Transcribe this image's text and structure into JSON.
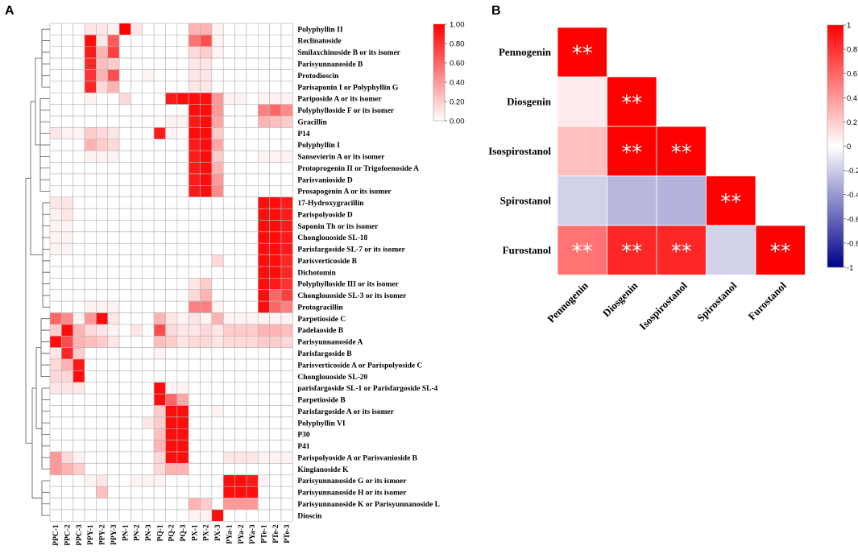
{
  "panels": {
    "a": "A",
    "b": "B"
  },
  "chart_data": [
    {
      "type": "heatmap",
      "title": "",
      "columns": [
        "PPC-1",
        "PPC-2",
        "PPC-3",
        "PPY-1",
        "PPY-2",
        "PPY-3",
        "PN-1",
        "PN-2",
        "PN-3",
        "PQ-1",
        "PQ-2",
        "PQ-3",
        "PX-1",
        "PX-2",
        "PX-3",
        "PYa-1",
        "PYa-2",
        "PYa-3",
        "PTe-1",
        "PTe-2",
        "PTe-3"
      ],
      "rows": [
        "Polyphyllin II",
        "Reclinatoside",
        "Smilaxchinoside B or its isomer",
        "Parisyunnanoside B",
        "Protodioscin",
        "Parisaponin I or Polyphyllin G",
        "Pariposide A or its isomer",
        "Polyphylloside F or its isomer",
        "Gracillin",
        "P14",
        "Polyphyllin I",
        "Sansevierin A or its isomer",
        "Protoprogenin II or Trigofoenoside A",
        "Parisvanioside D",
        "Prosapogenin A or its isomer",
        "17-Hydroxygracillin",
        "Parispolyoside D",
        "Saponin Th or its isomer",
        "Chonglouoside SL-18",
        "Parisfargoside SL-7 or its isomer",
        "Parisverticoside B",
        "Dichotomin",
        "Polyphylloside III or its isomer",
        "Chonglouoside SL-3 or its isomer",
        "Protogracillin",
        "Parpetioside C",
        "Padelaoside B",
        "Parisyunnanoside A",
        "Parisfargoside B",
        "Parisverticoside A or Parispolyoside C",
        "Chonglouoside SL-20",
        "parisfargoside SL-1 or Parisfargoside SL-4",
        "Parpetioside B",
        "Parisfargoside A or its isomer",
        "Polyphyllin VI",
        "P30",
        "P41",
        "Parispolyoside A or Parisvanioside B",
        "Kingianoside K",
        "Parisyunnanoside G or its ismoer",
        "Parisyunnanoside H or its isomer",
        "Parisyunnanoside K or Parisyunnanoside L",
        "Dioscin"
      ],
      "values": [
        [
          0,
          0,
          0,
          0.1,
          0.1,
          0.05,
          1,
          0.1,
          0,
          0,
          0,
          0,
          0.3,
          0.3,
          0.05,
          0,
          0,
          0,
          0,
          0,
          0
        ],
        [
          0,
          0,
          0,
          0.95,
          0.1,
          0.65,
          0,
          0,
          0,
          0,
          0,
          0,
          0.55,
          0.7,
          0.05,
          0,
          0,
          0,
          0,
          0,
          0
        ],
        [
          0,
          0,
          0,
          0.9,
          0.3,
          0.75,
          0,
          0,
          0,
          0,
          0,
          0,
          0.15,
          0.2,
          0.05,
          0,
          0,
          0,
          0,
          0,
          0
        ],
        [
          0,
          0,
          0,
          0.85,
          0.25,
          0.2,
          0,
          0,
          0,
          0,
          0,
          0,
          0.1,
          0.1,
          0,
          0,
          0,
          0,
          0,
          0,
          0
        ],
        [
          0,
          0,
          0,
          0.8,
          0.3,
          0.7,
          0,
          0,
          0.05,
          0,
          0,
          0,
          0.1,
          0.1,
          0,
          0,
          0,
          0,
          0,
          0,
          0
        ],
        [
          0,
          0,
          0,
          0.85,
          0.15,
          0.3,
          0,
          0,
          0,
          0,
          0,
          0,
          0.1,
          0.1,
          0,
          0,
          0,
          0,
          0,
          0,
          0
        ],
        [
          0,
          0,
          0,
          0.05,
          0,
          0,
          0.15,
          0,
          0,
          0,
          0.9,
          0.95,
          0.95,
          0.95,
          0.4,
          0.05,
          0.05,
          0,
          0.05,
          0.05,
          0.05
        ],
        [
          0,
          0,
          0,
          0,
          0,
          0,
          0,
          0,
          0,
          0,
          0,
          0,
          0.95,
          0.95,
          0.4,
          0,
          0,
          0,
          0.5,
          0.6,
          0.45
        ],
        [
          0,
          0,
          0,
          0,
          0,
          0,
          0,
          0,
          0,
          0,
          0.05,
          0.05,
          0.9,
          0.95,
          0.35,
          0,
          0,
          0,
          0.3,
          0.25,
          0.2
        ],
        [
          0.1,
          0.05,
          0.05,
          0.2,
          0.15,
          0.1,
          0,
          0,
          0,
          0.9,
          0.05,
          0,
          0.95,
          0.95,
          0.2,
          0,
          0,
          0,
          0,
          0,
          0
        ],
        [
          0,
          0,
          0,
          0.3,
          0.2,
          0.15,
          0,
          0,
          0,
          0,
          0,
          0,
          0.9,
          0.95,
          0.35,
          0,
          0,
          0,
          0,
          0,
          0
        ],
        [
          0,
          0,
          0,
          0.05,
          0.05,
          0.05,
          0,
          0,
          0,
          0,
          0,
          0,
          0.9,
          0.95,
          0.2,
          0,
          0,
          0,
          0.05,
          0.05,
          0.05
        ],
        [
          0,
          0,
          0,
          0,
          0,
          0,
          0,
          0,
          0,
          0,
          0,
          0,
          0.9,
          0.95,
          0.3,
          0,
          0,
          0,
          0,
          0,
          0
        ],
        [
          0,
          0,
          0,
          0,
          0,
          0,
          0,
          0,
          0,
          0,
          0,
          0,
          0.9,
          0.95,
          0.4,
          0,
          0,
          0,
          0,
          0,
          0
        ],
        [
          0,
          0,
          0,
          0,
          0,
          0,
          0,
          0,
          0,
          0,
          0,
          0,
          0.9,
          0.95,
          0.45,
          0,
          0,
          0,
          0,
          0,
          0
        ],
        [
          0.1,
          0.1,
          0,
          0,
          0,
          0,
          0,
          0,
          0,
          0,
          0,
          0,
          0,
          0,
          0,
          0,
          0,
          0,
          0.95,
          0.95,
          0.9
        ],
        [
          0.05,
          0.1,
          0,
          0,
          0,
          0,
          0,
          0,
          0,
          0,
          0,
          0,
          0,
          0,
          0,
          0,
          0,
          0,
          0.95,
          0.95,
          0.9
        ],
        [
          0.05,
          0.05,
          0,
          0,
          0,
          0,
          0,
          0,
          0,
          0,
          0,
          0,
          0,
          0,
          0,
          0,
          0,
          0,
          0.95,
          0.95,
          0.9
        ],
        [
          0.05,
          0.05,
          0,
          0,
          0,
          0,
          0,
          0,
          0,
          0,
          0,
          0,
          0,
          0,
          0,
          0,
          0,
          0,
          0.95,
          0.95,
          0.9
        ],
        [
          0.05,
          0.05,
          0,
          0,
          0,
          0,
          0,
          0,
          0,
          0,
          0,
          0,
          0,
          0,
          0,
          0,
          0,
          0,
          0.95,
          0.95,
          0.9
        ],
        [
          0,
          0,
          0,
          0,
          0,
          0,
          0,
          0,
          0,
          0,
          0,
          0,
          0,
          0,
          0.15,
          0,
          0,
          0,
          0.95,
          0.95,
          0.85
        ],
        [
          0,
          0,
          0,
          0,
          0,
          0,
          0,
          0,
          0,
          0,
          0,
          0,
          0,
          0,
          0,
          0,
          0,
          0,
          0.95,
          0.95,
          0.85
        ],
        [
          0,
          0,
          0,
          0,
          0,
          0,
          0,
          0,
          0,
          0,
          0,
          0,
          0.1,
          0.2,
          0,
          0,
          0,
          0,
          0.95,
          0.9,
          0.8
        ],
        [
          0,
          0,
          0,
          0,
          0,
          0,
          0,
          0,
          0,
          0,
          0,
          0,
          0.15,
          0.3,
          0,
          0,
          0,
          0,
          0.95,
          0.6,
          0.75
        ],
        [
          0,
          0,
          0,
          0.05,
          0.05,
          0.05,
          0,
          0,
          0,
          0,
          0,
          0,
          0.5,
          0.5,
          0.05,
          0,
          0,
          0,
          0.95,
          0.6,
          0.5
        ],
        [
          0.6,
          0.45,
          0.05,
          0.4,
          0.95,
          0.1,
          0,
          0,
          0,
          0.3,
          0.1,
          0.05,
          0.1,
          0.05,
          0.3,
          0.05,
          0.05,
          0.05,
          0.05,
          0.05,
          0.05
        ],
        [
          0.2,
          0.95,
          0.3,
          0.15,
          0.1,
          0.05,
          0,
          0.1,
          0,
          0.7,
          0.15,
          0.1,
          0.1,
          0.15,
          0.1,
          0.2,
          0.2,
          0.2,
          0.3,
          0.3,
          0.25
        ],
        [
          0.95,
          0.7,
          0.3,
          0.25,
          0.2,
          0.1,
          0,
          0,
          0,
          0.25,
          0.2,
          0.1,
          0.15,
          0.15,
          0.1,
          0.15,
          0.15,
          0.15,
          0.2,
          0.2,
          0.15
        ],
        [
          0.1,
          0.85,
          0.2,
          0,
          0,
          0,
          0,
          0,
          0,
          0.05,
          0,
          0,
          0,
          0,
          0,
          0,
          0,
          0,
          0,
          0,
          0
        ],
        [
          0.15,
          0.3,
          0.9,
          0,
          0,
          0,
          0,
          0,
          0,
          0,
          0,
          0,
          0,
          0,
          0,
          0,
          0,
          0,
          0,
          0,
          0
        ],
        [
          0.15,
          0.15,
          0.95,
          0,
          0,
          0,
          0,
          0,
          0,
          0,
          0,
          0,
          0,
          0,
          0,
          0,
          0,
          0,
          0,
          0,
          0
        ],
        [
          0.1,
          0.1,
          0.1,
          0,
          0,
          0,
          0,
          0,
          0,
          0.95,
          0.05,
          0.05,
          0,
          0,
          0,
          0,
          0,
          0,
          0,
          0,
          0
        ],
        [
          0,
          0,
          0,
          0,
          0,
          0,
          0,
          0,
          0,
          0.95,
          0.6,
          0.35,
          0,
          0,
          0,
          0,
          0,
          0,
          0,
          0,
          0
        ],
        [
          0,
          0,
          0,
          0,
          0,
          0,
          0,
          0,
          0,
          0.2,
          0.95,
          0.95,
          0,
          0,
          0.05,
          0,
          0,
          0,
          0,
          0,
          0
        ],
        [
          0,
          0,
          0,
          0,
          0,
          0,
          0,
          0,
          0.1,
          0.2,
          0.95,
          0.95,
          0,
          0,
          0,
          0,
          0,
          0,
          0,
          0,
          0
        ],
        [
          0,
          0,
          0,
          0,
          0,
          0,
          0,
          0,
          0,
          0.25,
          0.95,
          0.95,
          0,
          0,
          0,
          0,
          0,
          0,
          0,
          0,
          0
        ],
        [
          0,
          0,
          0,
          0,
          0,
          0,
          0,
          0,
          0,
          0.3,
          0.95,
          0.95,
          0,
          0,
          0,
          0,
          0,
          0,
          0,
          0,
          0
        ],
        [
          0.4,
          0.15,
          0.05,
          0,
          0,
          0,
          0,
          0,
          0,
          0.15,
          0.95,
          0.95,
          0,
          0,
          0,
          0.1,
          0.1,
          0.1,
          0.05,
          0.05,
          0.05
        ],
        [
          0.4,
          0.3,
          0.2,
          0,
          0,
          0,
          0,
          0,
          0,
          0.15,
          0.3,
          0.3,
          0,
          0,
          0,
          0,
          0,
          0,
          0,
          0,
          0
        ],
        [
          0,
          0,
          0,
          0.05,
          0.1,
          0,
          0,
          0.05,
          0.05,
          0.05,
          0,
          0,
          0,
          0,
          0,
          0.95,
          0.95,
          0.9,
          0.05,
          0,
          0
        ],
        [
          0,
          0,
          0,
          0,
          0.25,
          0,
          0,
          0,
          0,
          0,
          0,
          0,
          0,
          0,
          0,
          0.95,
          0.95,
          0.95,
          0,
          0,
          0
        ],
        [
          0,
          0,
          0,
          0,
          0,
          0,
          0,
          0,
          0,
          0,
          0,
          0,
          0.3,
          0.2,
          0,
          0.4,
          0.4,
          0.4,
          0,
          0,
          0
        ],
        [
          0,
          0,
          0,
          0,
          0,
          0,
          0,
          0,
          0,
          0,
          0,
          0,
          0.05,
          0.05,
          0.95,
          0,
          0,
          0,
          0,
          0,
          0
        ]
      ],
      "colorbar": {
        "min": 0,
        "max": 1,
        "ticks": [
          "1.00",
          "0.80",
          "0.60",
          "0.40",
          "0.20",
          "0.00"
        ]
      },
      "colors": {
        "low": "#ffffff",
        "high": "#ff0000",
        "grid": "#b4b4b4"
      }
    },
    {
      "type": "heatmap",
      "title": "",
      "variables": [
        "Pennogenin",
        "Diosgenin",
        "Isospirostanol",
        "Spirostanol",
        "Furostanol"
      ],
      "matrix": [
        [
          1,
          null,
          null,
          null,
          null
        ],
        [
          0.08,
          1,
          null,
          null,
          null
        ],
        [
          0.25,
          1,
          1,
          null,
          null
        ],
        [
          -0.18,
          -0.28,
          -0.3,
          1,
          null
        ],
        [
          0.55,
          0.85,
          0.85,
          -0.18,
          1
        ]
      ],
      "significance": [
        [
          "**",
          "",
          "",
          "",
          ""
        ],
        [
          "",
          "**",
          "",
          "",
          ""
        ],
        [
          "",
          "**",
          "**",
          "",
          ""
        ],
        [
          "",
          "",
          "",
          "**",
          ""
        ],
        [
          "**",
          "**",
          "**",
          "",
          "**"
        ]
      ],
      "colorbar": {
        "min": -1,
        "max": 1,
        "ticks": [
          "1",
          "0.8",
          "0.6",
          "0.4",
          "0.2",
          "0",
          "-0.2",
          "-0.4",
          "-0.6",
          "-0.8",
          "-1"
        ]
      },
      "colors": {
        "neg": "#00008b",
        "mid": "#ffffff",
        "pos": "#ff0000"
      }
    }
  ]
}
